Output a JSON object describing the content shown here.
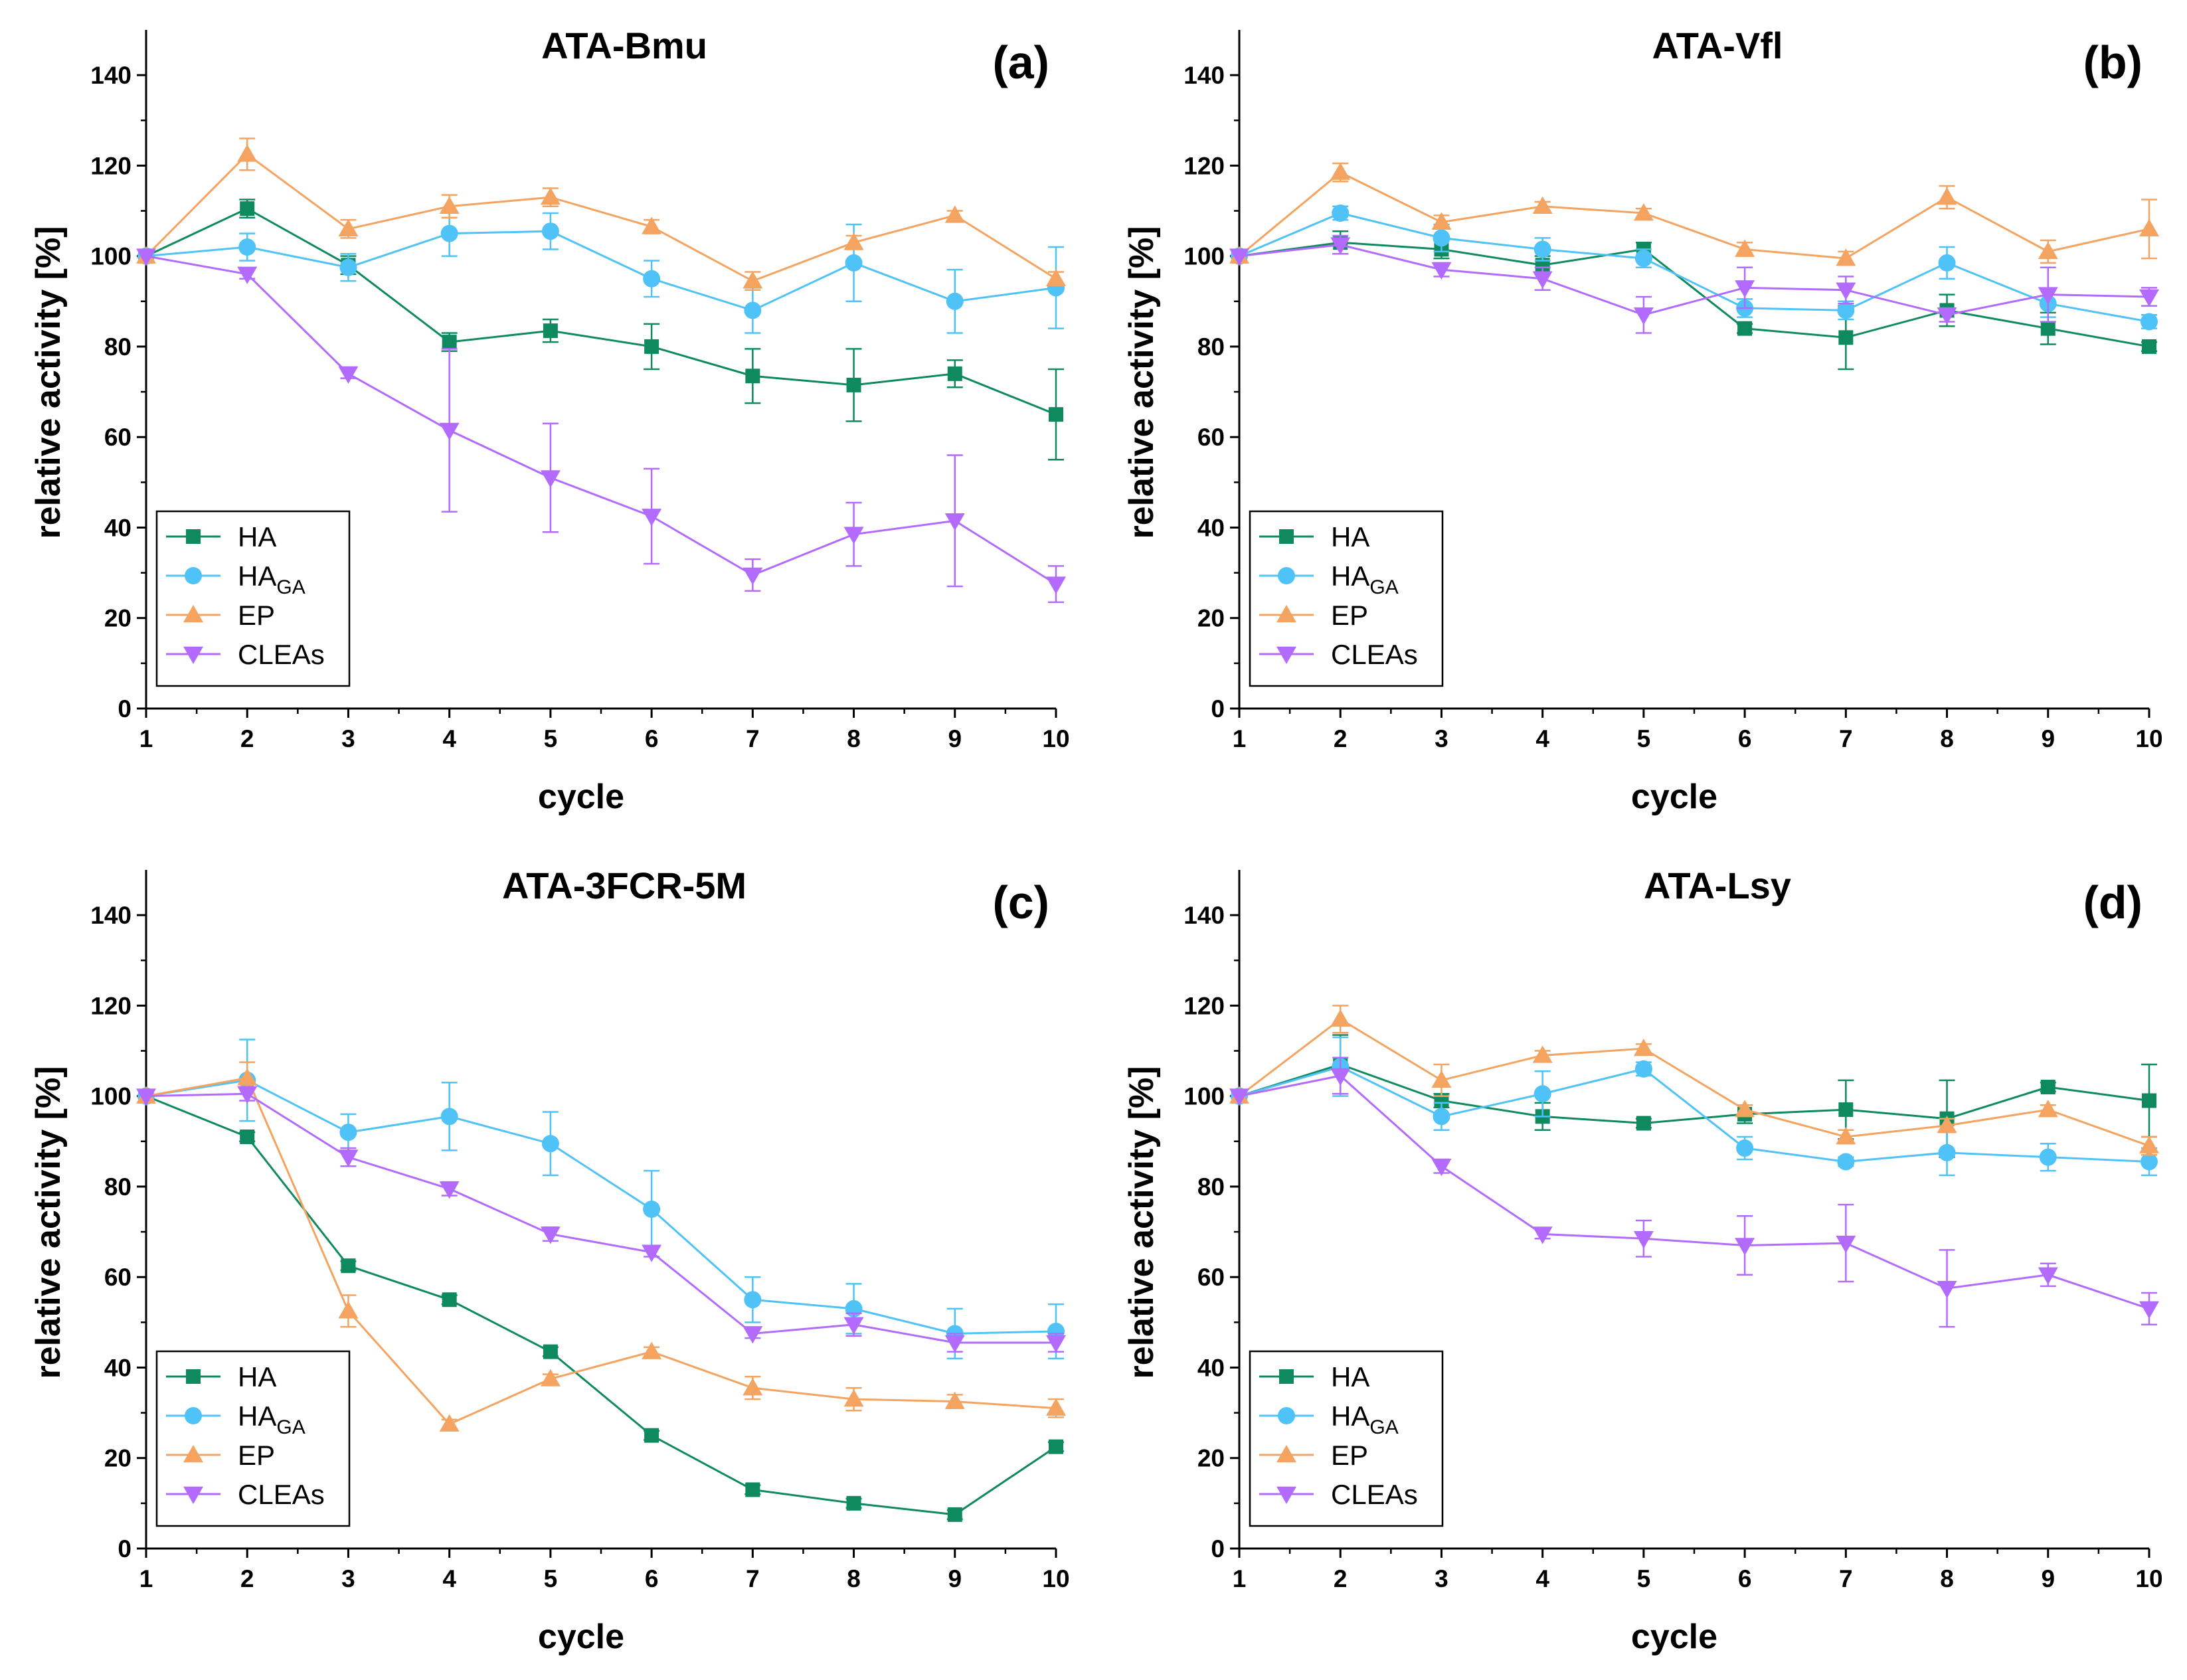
{
  "chart_data": [
    {
      "type": "line",
      "panel": "(a)",
      "title": "ATA-Bmu",
      "xlabel": "cycle",
      "ylabel": "relative activity [%]",
      "xlim": [
        1,
        10
      ],
      "ylim": [
        0,
        150
      ],
      "x": [
        1,
        2,
        3,
        4,
        5,
        6,
        7,
        8,
        9,
        10
      ],
      "xticks": [
        1,
        2,
        3,
        4,
        5,
        6,
        7,
        8,
        9,
        10
      ],
      "yticks": [
        0,
        20,
        40,
        60,
        80,
        100,
        120,
        140
      ],
      "legend_position": "bottom-left",
      "series": [
        {
          "name": "HA",
          "sub": "",
          "color": "#0f8a5f",
          "marker": "square",
          "values": [
            100,
            110.5,
            98,
            81,
            83.5,
            80,
            73.5,
            71.5,
            74,
            65
          ],
          "errors": [
            0,
            2,
            2,
            2,
            2.5,
            5,
            6,
            8,
            3,
            10
          ]
        },
        {
          "name": "HA",
          "sub": "GA",
          "color": "#4fc3f7",
          "marker": "circle",
          "values": [
            100,
            102,
            97.5,
            105,
            105.5,
            95,
            88,
            98.5,
            90,
            93
          ],
          "errors": [
            0,
            3,
            3,
            5,
            4,
            4,
            5,
            8.5,
            7,
            9
          ]
        },
        {
          "name": "EP",
          "sub": "",
          "color": "#f4a460",
          "marker": "triangle-up",
          "values": [
            100,
            122.5,
            106,
            111,
            113,
            106.5,
            94.5,
            103,
            109,
            95
          ],
          "errors": [
            0,
            3.5,
            2,
            2.5,
            2,
            1.5,
            2,
            1.5,
            1,
            1.5
          ]
        },
        {
          "name": "CLEAs",
          "sub": "",
          "color": "#b36bff",
          "marker": "triangle-down",
          "values": [
            100,
            96,
            74,
            61.5,
            51,
            42.5,
            29.5,
            38.5,
            41.5,
            27.5
          ],
          "errors": [
            0,
            1,
            1,
            18,
            12,
            10.5,
            3.5,
            7,
            14.5,
            4
          ]
        }
      ]
    },
    {
      "type": "line",
      "panel": "(b)",
      "title": "ATA-Vfl",
      "xlabel": "cycle",
      "ylabel": "relative activity [%]",
      "xlim": [
        1,
        10
      ],
      "ylim": [
        0,
        150
      ],
      "x": [
        1,
        2,
        3,
        4,
        5,
        6,
        7,
        8,
        9,
        10
      ],
      "xticks": [
        1,
        2,
        3,
        4,
        5,
        6,
        7,
        8,
        9,
        10
      ],
      "yticks": [
        0,
        20,
        40,
        60,
        80,
        100,
        120,
        140
      ],
      "legend_position": "bottom-left",
      "series": [
        {
          "name": "HA",
          "sub": "",
          "color": "#0f8a5f",
          "marker": "square",
          "values": [
            100,
            103,
            101.5,
            98,
            101.5,
            84,
            82,
            88,
            84,
            80
          ],
          "errors": [
            0,
            2.5,
            2,
            2,
            1.5,
            1,
            7,
            3.5,
            3.5,
            1
          ]
        },
        {
          "name": "HA",
          "sub": "GA",
          "color": "#4fc3f7",
          "marker": "circle",
          "values": [
            100,
            109.5,
            104,
            101.5,
            99.5,
            88.5,
            88,
            98.5,
            89.5,
            85.5
          ],
          "errors": [
            0,
            1.5,
            3,
            2.5,
            2,
            2,
            2,
            3.5,
            3,
            1.5
          ]
        },
        {
          "name": "EP",
          "sub": "",
          "color": "#f4a460",
          "marker": "triangle-up",
          "values": [
            100,
            118.5,
            107.5,
            111,
            109.5,
            101.5,
            99.5,
            113,
            101,
            106
          ],
          "errors": [
            0,
            2,
            1.5,
            1,
            1,
            1.5,
            1.5,
            2.5,
            2.5,
            6.5
          ]
        },
        {
          "name": "CLEAs",
          "sub": "",
          "color": "#b36bff",
          "marker": "triangle-down",
          "values": [
            100,
            102.5,
            97,
            95,
            87,
            93,
            92.5,
            87,
            91.5,
            91
          ],
          "errors": [
            0,
            2,
            1.5,
            2.5,
            4,
            4.5,
            3,
            1.5,
            6,
            2
          ]
        }
      ]
    },
    {
      "type": "line",
      "panel": "(c)",
      "title": "ATA-3FCR-5M",
      "xlabel": "cycle",
      "ylabel": "relative activity [%]",
      "xlim": [
        1,
        10
      ],
      "ylim": [
        0,
        150
      ],
      "x": [
        1,
        2,
        3,
        4,
        5,
        6,
        7,
        8,
        9,
        10
      ],
      "xticks": [
        1,
        2,
        3,
        4,
        5,
        6,
        7,
        8,
        9,
        10
      ],
      "yticks": [
        0,
        20,
        40,
        60,
        80,
        100,
        120,
        140
      ],
      "legend_position": "bottom-left",
      "series": [
        {
          "name": "HA",
          "sub": "",
          "color": "#0f8a5f",
          "marker": "square",
          "values": [
            100,
            91,
            62.5,
            55,
            43.5,
            25,
            13,
            10,
            7.5,
            22.5
          ],
          "errors": [
            0,
            1,
            1,
            1,
            1,
            1,
            1,
            1,
            1,
            1
          ]
        },
        {
          "name": "HA",
          "sub": "GA",
          "color": "#4fc3f7",
          "marker": "circle",
          "values": [
            100,
            103.5,
            92,
            95.5,
            89.5,
            75,
            55,
            53,
            47.5,
            48
          ],
          "errors": [
            0,
            9,
            4,
            7.5,
            7,
            8.5,
            5,
            5.5,
            5.5,
            6
          ]
        },
        {
          "name": "EP",
          "sub": "",
          "color": "#f4a460",
          "marker": "triangle-up",
          "values": [
            100,
            104,
            52.5,
            27.5,
            37.5,
            43.5,
            35.5,
            33,
            32.5,
            31
          ],
          "errors": [
            0,
            3.5,
            3.5,
            1,
            1,
            1,
            2.5,
            2.5,
            1.5,
            2
          ]
        },
        {
          "name": "CLEAs",
          "sub": "",
          "color": "#b36bff",
          "marker": "triangle-down",
          "values": [
            100,
            100.5,
            86.5,
            79.5,
            69.5,
            65.5,
            47.5,
            49.5,
            45.5,
            45.5
          ],
          "errors": [
            0,
            1.5,
            2,
            1.5,
            1.5,
            1,
            1,
            2.5,
            2,
            2
          ]
        }
      ]
    },
    {
      "type": "line",
      "panel": "(d)",
      "title": "ATA-Lsy",
      "xlabel": "cycle",
      "ylabel": "relative activity [%]",
      "xlim": [
        1,
        10
      ],
      "ylim": [
        0,
        150
      ],
      "x": [
        1,
        2,
        3,
        4,
        5,
        6,
        7,
        8,
        9,
        10
      ],
      "xticks": [
        1,
        2,
        3,
        4,
        5,
        6,
        7,
        8,
        9,
        10
      ],
      "yticks": [
        0,
        20,
        40,
        60,
        80,
        100,
        120,
        140
      ],
      "legend_position": "bottom-left",
      "series": [
        {
          "name": "HA",
          "sub": "",
          "color": "#0f8a5f",
          "marker": "square",
          "values": [
            100,
            107,
            99,
            95.5,
            94,
            96,
            97,
            95,
            102,
            99
          ],
          "errors": [
            0,
            6.5,
            1.5,
            3,
            1,
            2,
            6.5,
            8.5,
            1,
            8
          ]
        },
        {
          "name": "HA",
          "sub": "GA",
          "color": "#4fc3f7",
          "marker": "circle",
          "values": [
            100,
            106.5,
            95.5,
            100.5,
            106,
            88.5,
            85.5,
            87.5,
            86.5,
            85.5
          ],
          "errors": [
            0,
            6.5,
            3,
            5,
            1.5,
            2.5,
            1,
            5,
            3,
            3
          ]
        },
        {
          "name": "EP",
          "sub": "",
          "color": "#f4a460",
          "marker": "triangle-up",
          "values": [
            100,
            117,
            103.5,
            109,
            110.5,
            97,
            91,
            93.5,
            97,
            89
          ],
          "errors": [
            0,
            3,
            3.5,
            1,
            1,
            1,
            1.5,
            1.5,
            1,
            2
          ]
        },
        {
          "name": "CLEAs",
          "sub": "",
          "color": "#b36bff",
          "marker": "triangle-down",
          "values": [
            100,
            104.5,
            84.5,
            69.5,
            68.5,
            67,
            67.5,
            57.5,
            60.5,
            53
          ],
          "errors": [
            0,
            4,
            1.5,
            1,
            4,
            6.5,
            8.5,
            8.5,
            2.5,
            3.5
          ]
        }
      ]
    }
  ]
}
